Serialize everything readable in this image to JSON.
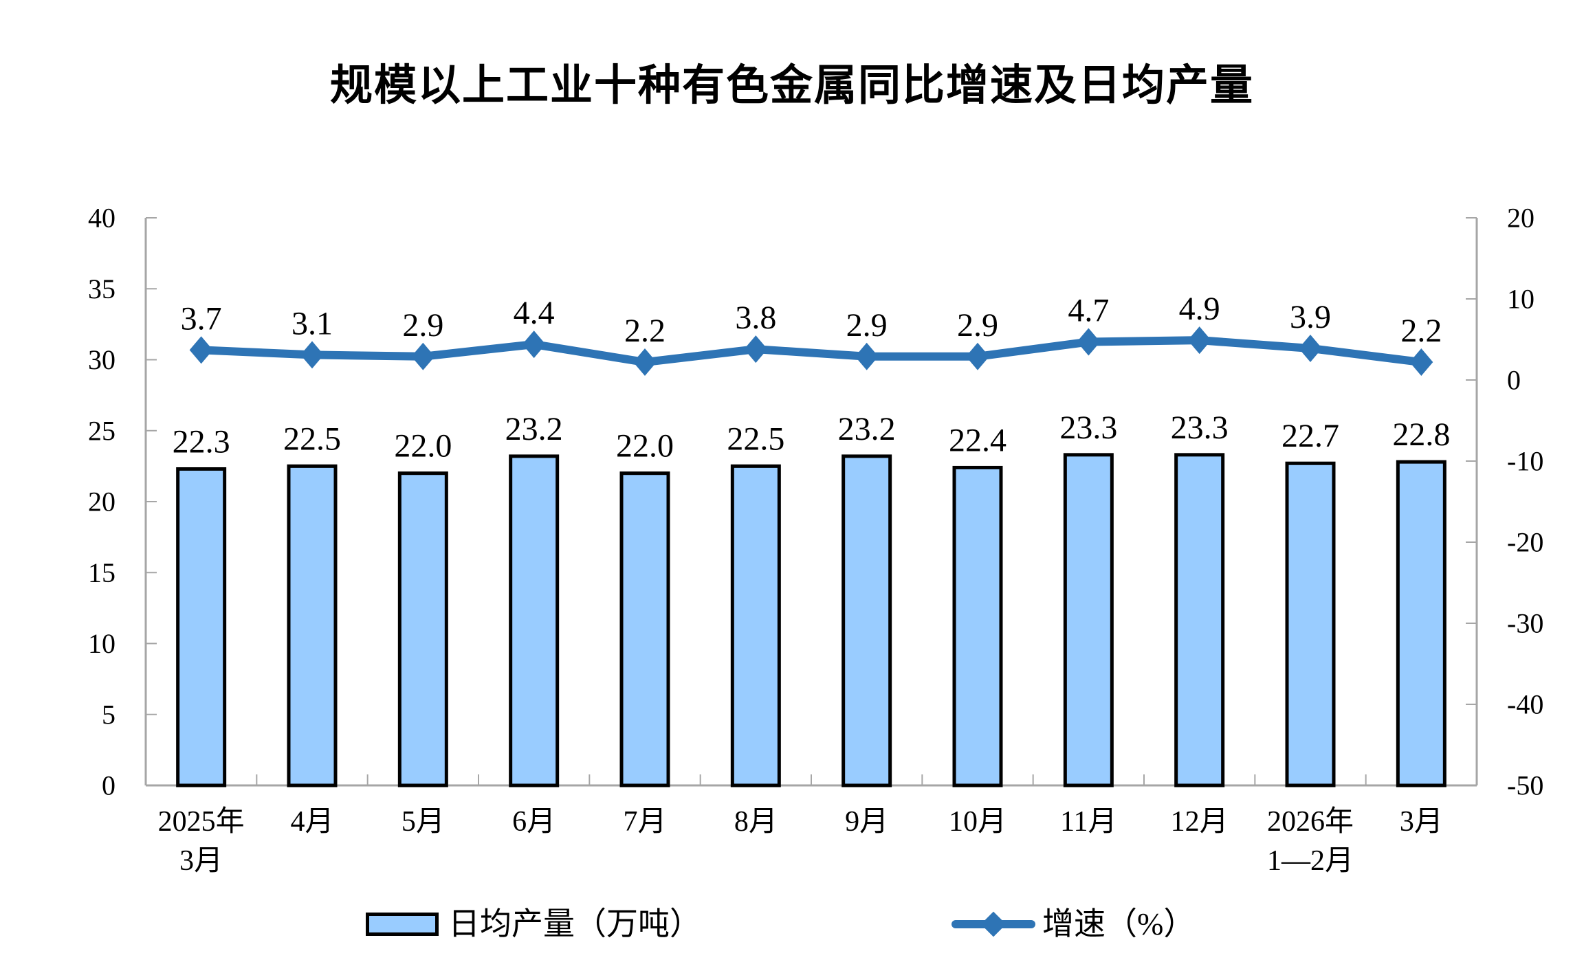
{
  "title": "规模以上工业十种有色金属同比增速及日均产量",
  "chart_data": {
    "type": "combo-bar-line",
    "categories": [
      [
        "2025年",
        "3月"
      ],
      [
        "4月"
      ],
      [
        "5月"
      ],
      [
        "6月"
      ],
      [
        "7月"
      ],
      [
        "8月"
      ],
      [
        "9月"
      ],
      [
        "10月"
      ],
      [
        "11月"
      ],
      [
        "12月"
      ],
      [
        "2026年",
        "1—2月"
      ],
      [
        "3月"
      ]
    ],
    "series": [
      {
        "name": "日均产量（万吨）",
        "type": "bar",
        "axis": "left",
        "color": "#99CCFF",
        "border_color": "#000000",
        "values": [
          22.3,
          22.5,
          22.0,
          23.2,
          22.0,
          22.5,
          23.2,
          22.4,
          23.3,
          23.3,
          22.7,
          22.8
        ]
      },
      {
        "name": "增速（%）",
        "type": "line",
        "axis": "right",
        "color": "#2E74B5",
        "marker": "diamond",
        "values": [
          3.7,
          3.1,
          2.9,
          4.4,
          2.2,
          3.8,
          2.9,
          2.9,
          4.7,
          4.9,
          3.9,
          2.2
        ]
      }
    ],
    "left_axis": {
      "min": 0,
      "max": 40,
      "ticks": [
        40,
        35,
        30,
        25,
        20,
        15,
        10,
        5,
        0
      ]
    },
    "right_axis": {
      "min": -50,
      "max": 20,
      "ticks": [
        20,
        10,
        0,
        -10,
        -20,
        -30,
        -40,
        -50
      ]
    },
    "axis_color": "#A6A6A6",
    "text_color": "#000000",
    "legend_position": "bottom",
    "grid": "off",
    "value_label_decimals": 1
  }
}
